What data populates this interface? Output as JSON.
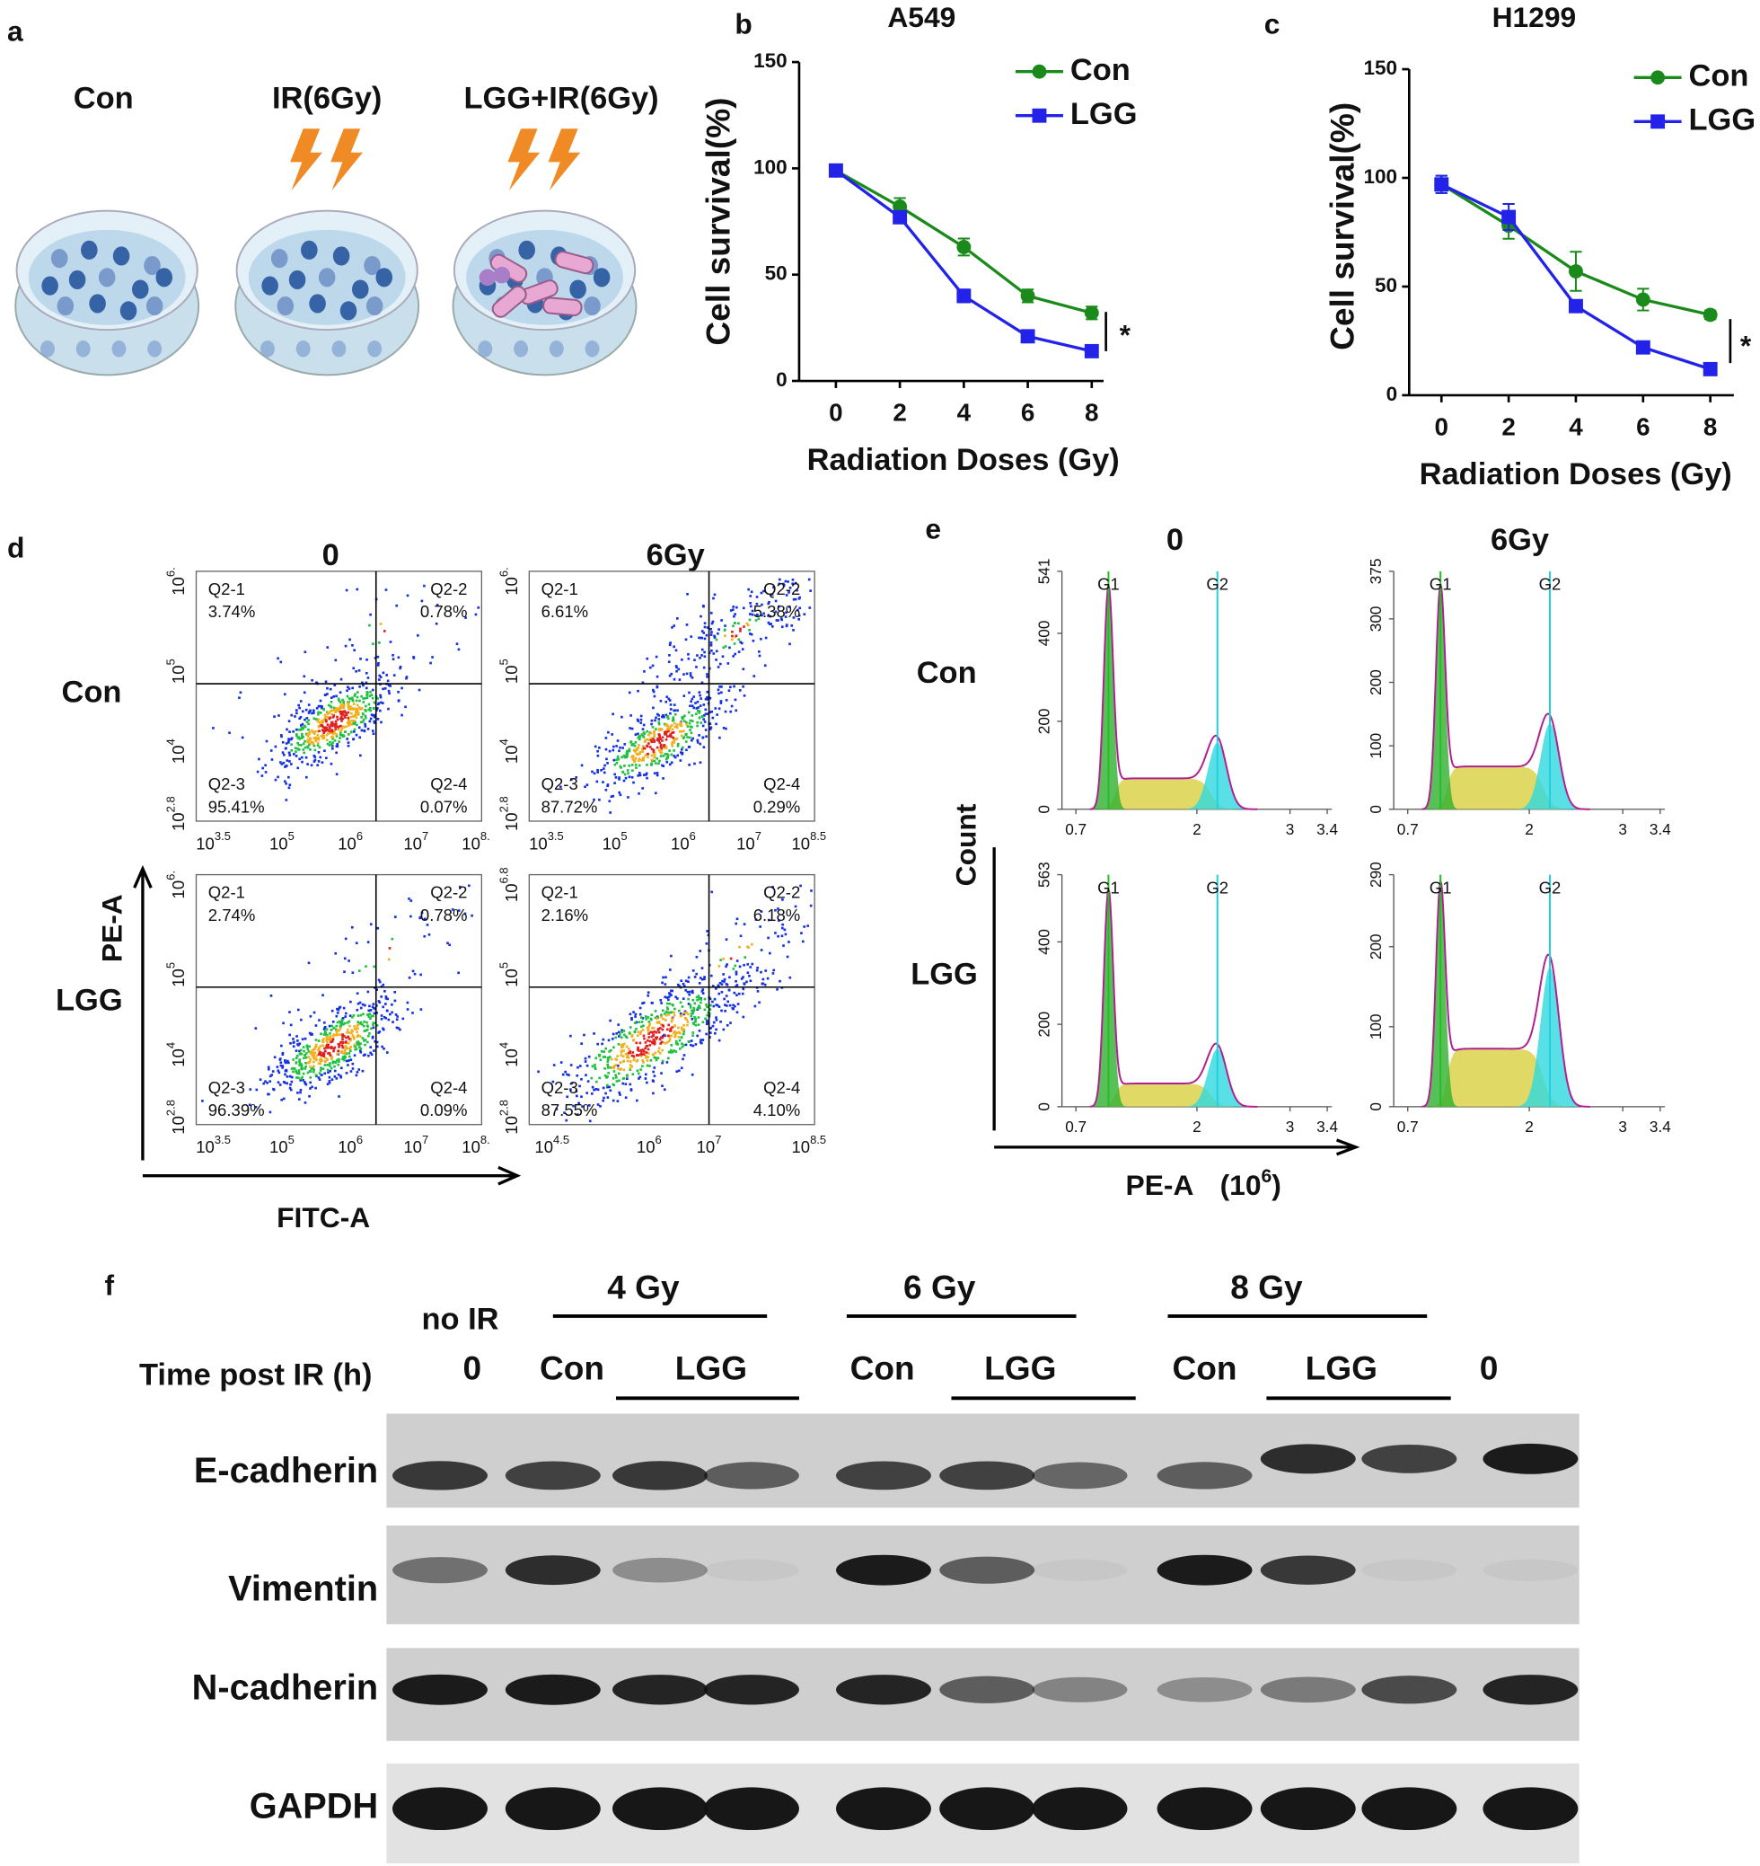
{
  "panel_a": {
    "letter": "a",
    "labels": [
      "Con",
      "IR(6Gy)",
      "LGG+IR(6Gy)"
    ]
  },
  "chart_data": [
    {
      "letter": "b",
      "type": "line",
      "title": "A549",
      "x_label": "Radiation Doses (Gy)",
      "y_label": "Cell survival(%)",
      "x": [
        0,
        2,
        4,
        6,
        8
      ],
      "xlim": [
        -1.15,
        8.37
      ],
      "xticks": [
        0,
        2,
        4,
        6,
        8
      ],
      "ylim": [
        0,
        150
      ],
      "yticks": [
        0,
        50,
        100,
        150
      ],
      "annotation": "*",
      "series": [
        {
          "name": "Con",
          "color": "#1a8a1a",
          "marker": "circle",
          "values": [
            99,
            82,
            63,
            40,
            32
          ],
          "errors": [
            2,
            4,
            4,
            3,
            3
          ]
        },
        {
          "name": "LGG",
          "color": "#2222e8",
          "marker": "square",
          "values": [
            99,
            77,
            40,
            21,
            14
          ],
          "errors": [
            2,
            2,
            3,
            2,
            1
          ]
        }
      ]
    },
    {
      "letter": "c",
      "type": "line",
      "title": "H1299",
      "x_label": "Radiation Doses (Gy)",
      "y_label": "Cell survival(%)",
      "x": [
        0,
        2,
        4,
        6,
        8
      ],
      "xlim": [
        -0.96,
        8.7
      ],
      "xticks": [
        0,
        2,
        4,
        6,
        8
      ],
      "ylim": [
        0,
        150
      ],
      "yticks": [
        0,
        50,
        100,
        150
      ],
      "annotation": "*",
      "series": [
        {
          "name": "Con",
          "color": "#1a8a1a",
          "marker": "circle",
          "values": [
            97,
            78,
            57,
            44,
            37
          ],
          "errors": [
            4,
            6,
            9,
            5,
            2
          ]
        },
        {
          "name": "LGG",
          "color": "#2222e8",
          "marker": "square",
          "values": [
            97,
            82,
            41,
            22,
            12
          ],
          "errors": [
            4,
            6,
            2,
            2,
            1
          ]
        }
      ]
    }
  ],
  "panel_d": {
    "letter": "d",
    "columns": [
      "0",
      "6Gy"
    ],
    "rows": [
      "Con",
      "LGG"
    ],
    "x_label": "FITC-A",
    "y_label": "PE-A",
    "tick_base": "10",
    "quadrant_names": [
      "Q2-1",
      "Q2-2",
      "Q2-3",
      "Q2-4"
    ],
    "plots": [
      {
        "quadrants": [
          "3.74%",
          "0.78%",
          "95.41%",
          "0.07%"
        ],
        "xticks": [
          "3.5",
          "5",
          "6",
          "7",
          "8."
        ],
        "yticks": [
          "6.",
          "5",
          "4",
          "2.8"
        ]
      },
      {
        "quadrants": [
          "6.61%",
          "5.38%",
          "87.72%",
          "0.29%"
        ],
        "xticks": [
          "3.5",
          "5",
          "6",
          "7",
          "8.5"
        ],
        "yticks": [
          "6.",
          "5",
          "4",
          "2.8"
        ]
      },
      {
        "quadrants": [
          "2.74%",
          "0.78%",
          "96.39%",
          "0.09%"
        ],
        "xticks": [
          "3.5",
          "5",
          "6",
          "7",
          "8."
        ],
        "yticks": [
          "6.",
          "5",
          "4",
          "2.8"
        ]
      },
      {
        "quadrants": [
          "2.16%",
          "6.18%",
          "87.55%",
          "4.10%"
        ],
        "xticks": [
          "4.5",
          "6",
          "7",
          "8.5"
        ],
        "yticks": [
          "6.8",
          "5",
          "4",
          "2.8"
        ]
      }
    ]
  },
  "panel_e": {
    "letter": "e",
    "columns": [
      "0",
      "6Gy"
    ],
    "rows": [
      "Con",
      "LGG"
    ],
    "y_label": "Count",
    "x_label": "PE-A",
    "x_unit": {
      "open": "(10",
      "exp": "6",
      "close": ")"
    },
    "peaks": [
      "G1",
      "G2"
    ],
    "xlim": [
      0.55,
      3.45
    ],
    "xticks": [
      0.7,
      2,
      3,
      3.4
    ],
    "plots": [
      {
        "ylim": [
          0,
          541
        ],
        "yticks": [
          0,
          200,
          400,
          541
        ]
      },
      {
        "ylim": [
          0,
          375
        ],
        "yticks": [
          0,
          100,
          200,
          300,
          375
        ]
      },
      {
        "ylim": [
          0,
          563
        ],
        "yticks": [
          0,
          200,
          400,
          563
        ]
      },
      {
        "ylim": [
          0,
          290
        ],
        "yticks": [
          0,
          100,
          200,
          290
        ]
      }
    ]
  },
  "panel_f": {
    "letter": "f",
    "no_ir": "no IR",
    "doses": [
      "4 Gy",
      "6 Gy",
      "8 Gy"
    ],
    "time_label": "Time post IR (h)",
    "lanes": [
      "0",
      "Con",
      "LGG",
      "Con",
      "LGG",
      "Con",
      "LGG",
      "0"
    ],
    "proteins": [
      "E-cadherin",
      "Vimentin",
      "N-cadherin",
      "GAPDH"
    ]
  }
}
